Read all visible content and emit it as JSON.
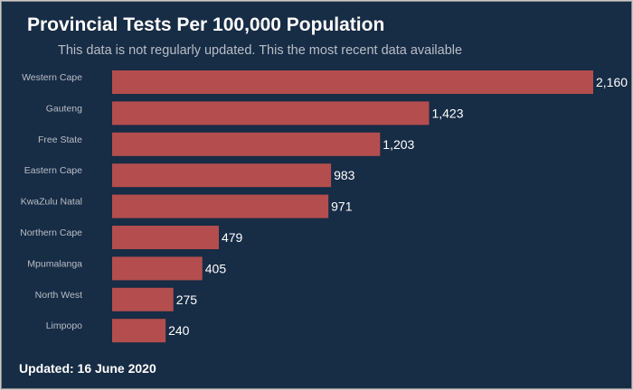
{
  "chart_data": {
    "type": "bar",
    "orientation": "horizontal",
    "title": "Provincial Tests Per 100,000 Population",
    "subtitle": "This data is not regularly updated. This the most recent data available",
    "categories": [
      "Western Cape",
      "Gauteng",
      "Free State",
      "Eastern Cape",
      "KwaZulu Natal",
      "Northern Cape",
      "Mpumalanga",
      "North West",
      "Limpopo"
    ],
    "values": [
      2160,
      1423,
      1203,
      983,
      971,
      479,
      405,
      275,
      240
    ],
    "value_labels": [
      "2,160",
      "1,423",
      "1,203",
      "983",
      "971",
      "479",
      "405",
      "275",
      "240"
    ],
    "xlim": [
      0,
      2160
    ],
    "bar_color": "#b44e4e",
    "grid": false
  },
  "footer": "Updated: 16 June 2020",
  "colors": {
    "background": "#172c45",
    "bar": "#b44e4e",
    "text": "#ffffff",
    "muted": "#b9bec6"
  }
}
